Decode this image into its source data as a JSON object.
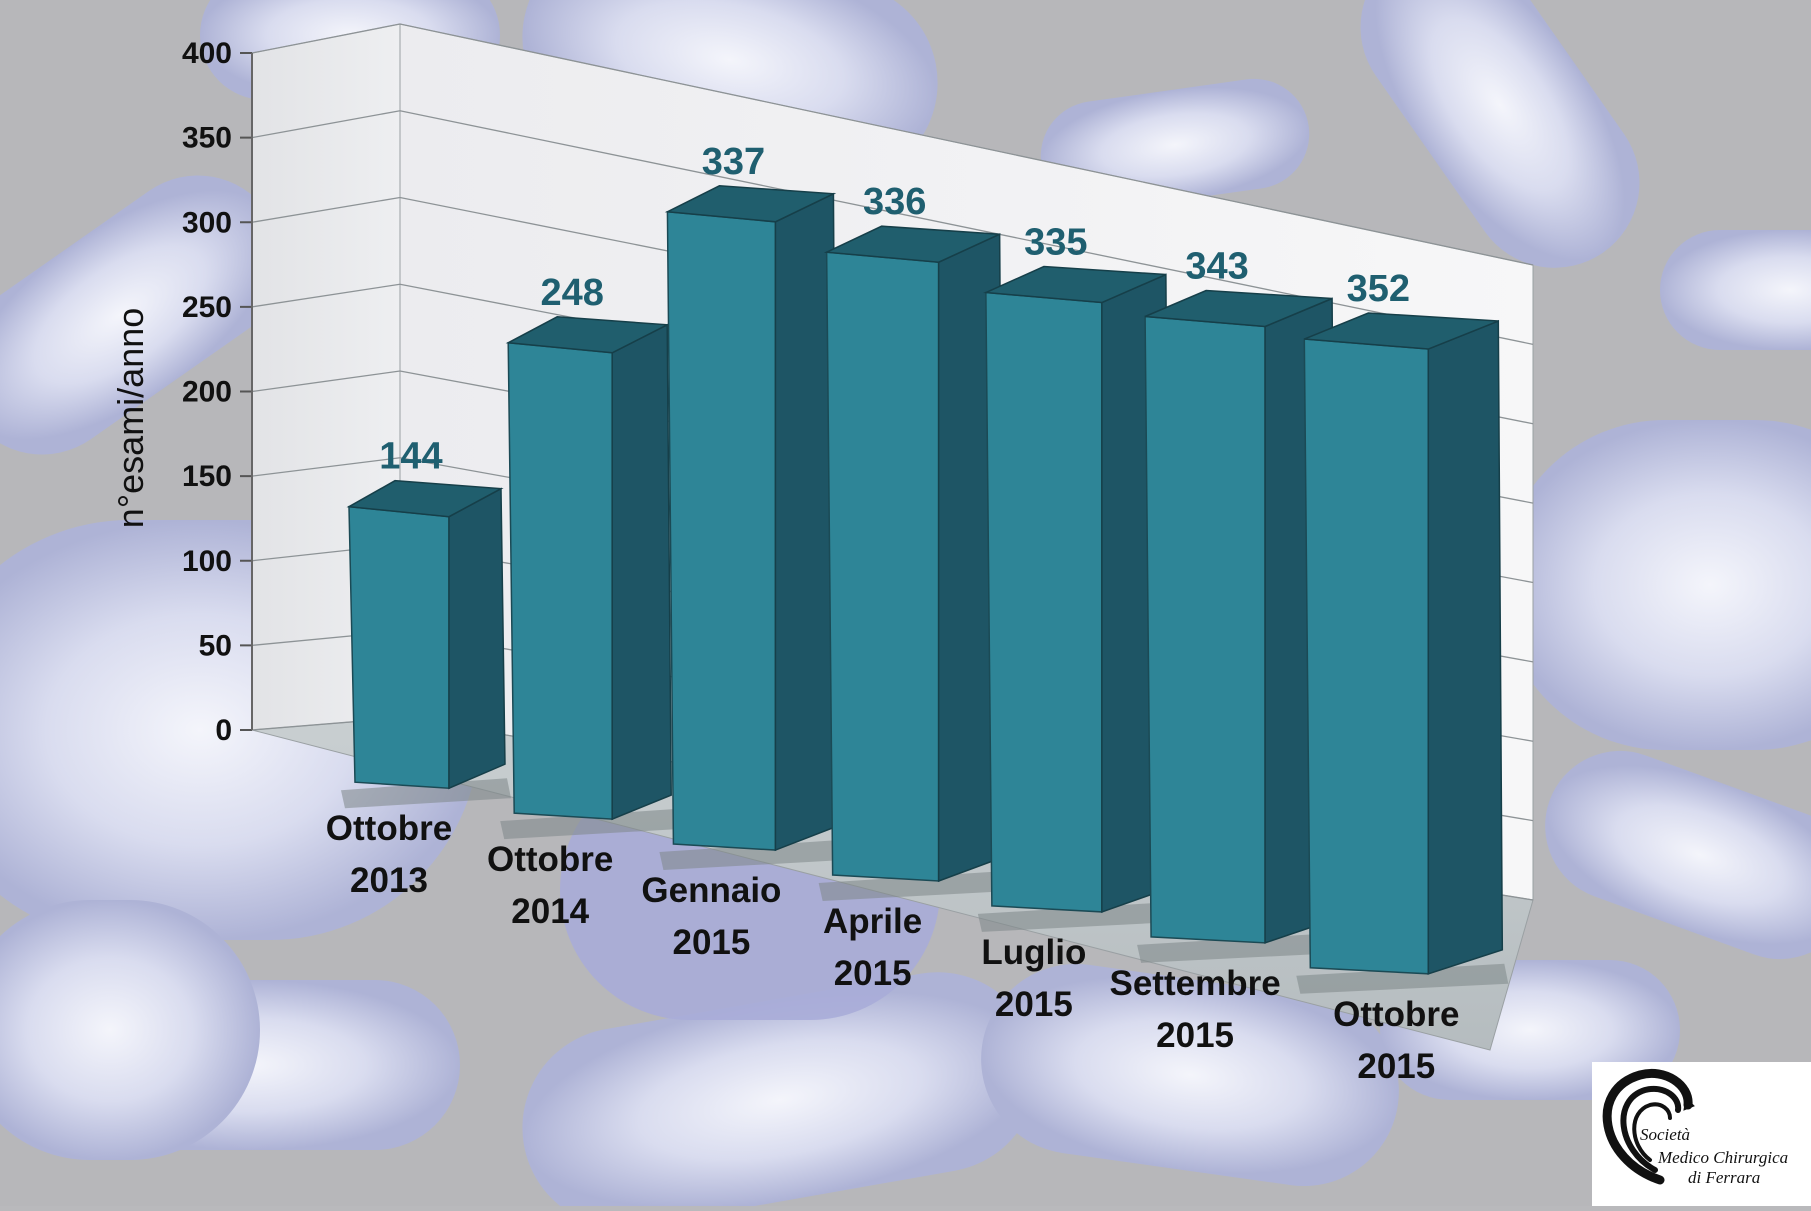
{
  "chart_data": {
    "type": "bar",
    "categories": [
      [
        "Ottobre",
        "2013"
      ],
      [
        "Ottobre",
        "2014"
      ],
      [
        "Gennaio",
        "2015"
      ],
      [
        "Aprile",
        "2015"
      ],
      [
        "Luglio",
        "2015"
      ],
      [
        "Settembre",
        "2015"
      ],
      [
        "Ottobre",
        "2015"
      ]
    ],
    "values": [
      144,
      248,
      337,
      336,
      335,
      343,
      352
    ],
    "ylabel": "n°esami/anno",
    "ylim": [
      0,
      400
    ],
    "yticks": [
      0,
      50,
      100,
      150,
      200,
      250,
      300,
      350,
      400
    ],
    "grid": true,
    "style": "3d-bar",
    "colors": {
      "bar_front": "#2e8597",
      "bar_side": "#1e5565",
      "bar_top": "#205e6d",
      "label": "#1f5f70"
    }
  },
  "logo": {
    "line1": "Società",
    "line2": "Medico Chirurgica",
    "line3": "di Ferrara"
  }
}
